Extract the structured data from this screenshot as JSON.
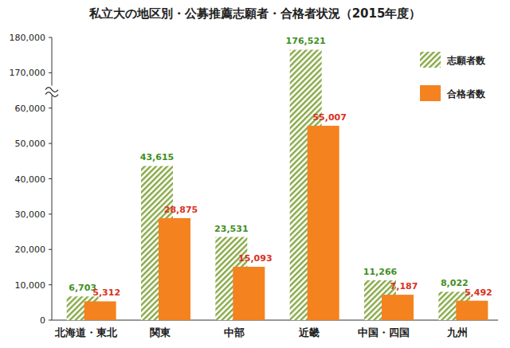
{
  "chart_data": {
    "type": "bar",
    "title": "私立大の地区別・公募推薦志願者・合格者状況（2015年度）",
    "categories": [
      "北海道・東北",
      "関東",
      "中部",
      "近畿",
      "中国・四国",
      "九州"
    ],
    "series": [
      {
        "name": "志願者数",
        "color": "#86a843",
        "values": [
          6703,
          43615,
          23531,
          176521,
          11266,
          8022
        ],
        "value_labels": [
          "6,703",
          "43,615",
          "23,531",
          "176,521",
          "11,266",
          "8,022"
        ]
      },
      {
        "name": "合格者数",
        "color": "#f4821f",
        "values": [
          5312,
          28875,
          15093,
          55007,
          7187,
          5492
        ],
        "value_labels": [
          "5,312",
          "28,875",
          "15,093",
          "55,007",
          "7,187",
          "5,492"
        ]
      }
    ],
    "ylim": [
      0,
      180000
    ],
    "yticks": [
      0,
      {
        "value": 10000,
        "label": "10,000"
      },
      {
        "value": 20000,
        "label": "20,000"
      },
      {
        "value": 30000,
        "label": "30,000"
      },
      {
        "value": 40000,
        "label": "40,000"
      },
      {
        "value": 50000,
        "label": "50,000"
      },
      {
        "value": 60000,
        "label": "60,000"
      },
      {
        "value": 170000,
        "label": "170,000"
      },
      {
        "value": 180000,
        "label": "180,000"
      }
    ],
    "grid": false,
    "legend": "top-right",
    "data_labels": true
  }
}
